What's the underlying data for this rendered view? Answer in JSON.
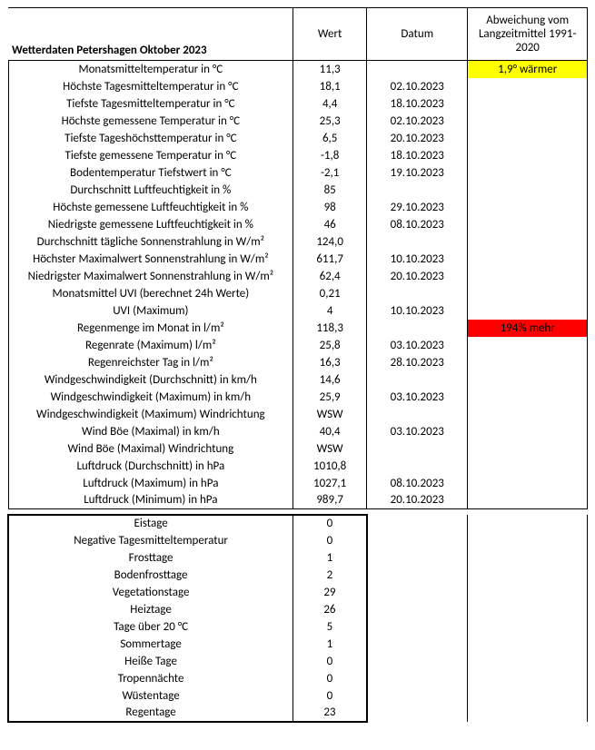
{
  "title": "Wetterdaten Petershagen Oktober 2023",
  "columns": {
    "value": "Wert",
    "date": "Datum",
    "deviation": "Abweichung vom Langzeitmittel 1991-2020"
  },
  "highlight_colors": {
    "warm": "#ffff00",
    "more": "#ff0000"
  },
  "rows": [
    {
      "label": "Monatsmitteltemperatur in °C",
      "value": "11,3",
      "date": "",
      "deviation": "1,9° wärmer",
      "hl": "warm"
    },
    {
      "label": "Höchste Tagesmitteltemperatur in °C",
      "value": "18,1",
      "date": "02.10.2023",
      "deviation": ""
    },
    {
      "label": "Tiefste Tagesmitteltemperatur in °C",
      "value": "4,4",
      "date": "18.10.2023",
      "deviation": ""
    },
    {
      "label": "Höchste gemessene Temperatur in °C",
      "value": "25,3",
      "date": "02.10.2023",
      "deviation": ""
    },
    {
      "label": "Tiefste Tageshöchsttemperatur in °C",
      "value": "6,5",
      "date": "20.10.2023",
      "deviation": ""
    },
    {
      "label": "Tiefste gemessene Temperatur in °C",
      "value": "-1,8",
      "date": "18.10.2023",
      "deviation": ""
    },
    {
      "label": "Bodentemperatur Tiefstwert in °C",
      "value": "-2,1",
      "date": "19.10.2023",
      "deviation": ""
    },
    {
      "label": "Durchschnitt Luftfeuchtigkeit in %",
      "value": "85",
      "date": "",
      "deviation": ""
    },
    {
      "label": "Höchste gemessene Luftfeuchtigkeit in %",
      "value": "98",
      "date": "29.10.2023",
      "deviation": ""
    },
    {
      "label": "Niedrigste gemessene Luftfeuchtigkeit in %",
      "value": "46",
      "date": "08.10.2023",
      "deviation": ""
    },
    {
      "label": "Durchschnitt tägliche Sonnenstrahlung in W/m²",
      "value": "124,0",
      "date": "",
      "deviation": ""
    },
    {
      "label": "Höchster Maximalwert Sonnenstrahlung in W/m²",
      "value": "611,7",
      "date": "10.10.2023",
      "deviation": ""
    },
    {
      "label": "Niedrigster Maximalwert Sonnenstrahlung in W/m²",
      "value": "62,4",
      "date": "20.10.2023",
      "deviation": ""
    },
    {
      "label": "Monatsmittel UVI (berechnet 24h Werte)",
      "value": "0,21",
      "date": "",
      "deviation": ""
    },
    {
      "label": "UVI (Maximum)",
      "value": "4",
      "date": "10.10.2023",
      "deviation": ""
    },
    {
      "label": "Regenmenge im Monat in l/m²",
      "value": "118,3",
      "date": "",
      "deviation": "194% mehr",
      "hl": "more"
    },
    {
      "label": "Regenrate (Maximum) l/m²",
      "value": "25,8",
      "date": "03.10.2023",
      "deviation": ""
    },
    {
      "label": "Regenreichster Tag in l/m²",
      "value": "16,3",
      "date": "28.10.2023",
      "deviation": ""
    },
    {
      "label": "Windgeschwindigkeit (Durchschnitt) in km/h",
      "value": "14,6",
      "date": "",
      "deviation": ""
    },
    {
      "label": "Windgeschwindigkeit (Maximum) in km/h",
      "value": "25,9",
      "date": "03.10.2023",
      "deviation": ""
    },
    {
      "label": "Windgeschwindigkeit (Maximum) Windrichtung",
      "value": "WSW",
      "date": "",
      "deviation": ""
    },
    {
      "label": "Wind Böe (Maximal) in km/h",
      "value": "40,4",
      "date": "03.10.2023",
      "deviation": ""
    },
    {
      "label": "Wind Böe (Maximal) Windrichtung",
      "value": "WSW",
      "date": "",
      "deviation": ""
    },
    {
      "label": "Luftdruck (Durchschnitt) in hPa",
      "value": "1010,8",
      "date": "",
      "deviation": ""
    },
    {
      "label": "Luftdruck (Maximum) in hPa",
      "value": "1027,1",
      "date": "08.10.2023",
      "deviation": ""
    },
    {
      "label": "Luftdruck (Minimum) in hPa",
      "value": "989,7",
      "date": "20.10.2023",
      "deviation": ""
    }
  ],
  "summary": [
    {
      "label": "Eistage",
      "value": "0"
    },
    {
      "label": "Negative Tagesmitteltemperatur",
      "value": "0"
    },
    {
      "label": "Frosttage",
      "value": "1"
    },
    {
      "label": "Bodenfrosttage",
      "value": "2"
    },
    {
      "label": "Vegetationstage",
      "value": "29"
    },
    {
      "label": "Heiztage",
      "value": "26"
    },
    {
      "label": "Tage über 20 °C",
      "value": "5"
    },
    {
      "label": "Sommertage",
      "value": "1"
    },
    {
      "label": "Heiße Tage",
      "value": "0"
    },
    {
      "label": "Tropennächte",
      "value": "0"
    },
    {
      "label": "Wüstentage",
      "value": "0"
    },
    {
      "label": "Regentage",
      "value": "23"
    }
  ]
}
